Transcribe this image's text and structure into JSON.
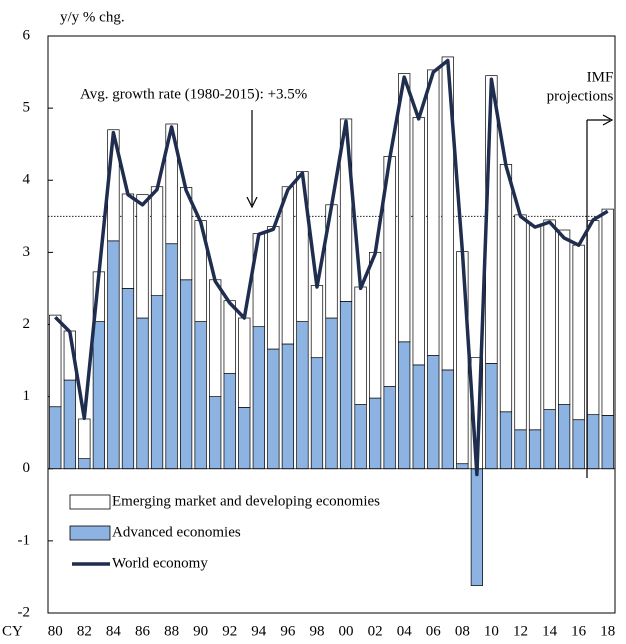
{
  "chart_data": {
    "type": "stacked-bar-line",
    "y_axis_label": "y/y % chg.",
    "x_axis_label": "CY",
    "categories": [
      "80",
      null,
      "82",
      null,
      "84",
      null,
      "86",
      null,
      "88",
      null,
      "90",
      null,
      "92",
      null,
      "94",
      null,
      "96",
      null,
      "98",
      null,
      "00",
      null,
      "02",
      null,
      "04",
      null,
      "06",
      null,
      "08",
      null,
      "10",
      null,
      "12",
      null,
      "14",
      null,
      "16",
      null,
      "18"
    ],
    "series": [
      {
        "name": "Advanced economies",
        "type": "bar",
        "color": "#8db3e2",
        "values": [
          0.86,
          1.23,
          0.14,
          2.04,
          3.16,
          2.5,
          2.09,
          2.4,
          3.12,
          2.62,
          2.04,
          1.0,
          1.32,
          0.85,
          1.97,
          1.66,
          1.73,
          2.04,
          1.54,
          2.09,
          2.32,
          0.89,
          0.98,
          1.14,
          1.76,
          1.44,
          1.57,
          1.37,
          0.07,
          -1.62,
          1.46,
          0.79,
          0.54,
          0.54,
          0.82,
          0.89,
          0.68,
          0.75,
          0.74
        ]
      },
      {
        "name": "Emerging market and developing economies",
        "type": "bar",
        "color": "#ffffff",
        "values": [
          1.27,
          0.68,
          0.55,
          0.69,
          1.54,
          1.31,
          1.71,
          1.51,
          1.66,
          1.28,
          1.4,
          1.62,
          1.01,
          1.24,
          1.29,
          1.7,
          2.18,
          2.08,
          1.0,
          1.57,
          2.53,
          1.63,
          2.02,
          3.19,
          3.72,
          3.43,
          3.96,
          4.34,
          2.94,
          1.54,
          3.99,
          3.43,
          2.98,
          2.83,
          2.63,
          2.42,
          2.42,
          2.69,
          2.86
        ]
      },
      {
        "name": "World economy",
        "type": "line",
        "color": "#1f2d4e",
        "values": [
          2.1,
          1.9,
          0.7,
          2.7,
          4.66,
          3.8,
          3.66,
          3.87,
          4.74,
          3.86,
          3.42,
          2.6,
          2.3,
          2.09,
          3.25,
          3.32,
          3.87,
          4.1,
          2.52,
          3.64,
          4.82,
          2.5,
          2.98,
          4.3,
          5.43,
          4.85,
          5.5,
          5.66,
          3.03,
          -0.08,
          5.4,
          4.2,
          3.5,
          3.35,
          3.42,
          3.2,
          3.1,
          3.45,
          3.57
        ]
      }
    ],
    "reference_line": 3.5,
    "annotations": [
      "Avg. growth rate (1980-2015): +3.5%",
      "IMF",
      "projections"
    ],
    "legend_order": [
      1,
      0,
      2
    ],
    "ylim": [
      -2,
      6
    ],
    "yticks": [
      -2,
      -1,
      0,
      1,
      2,
      3,
      4,
      5,
      6
    ]
  }
}
